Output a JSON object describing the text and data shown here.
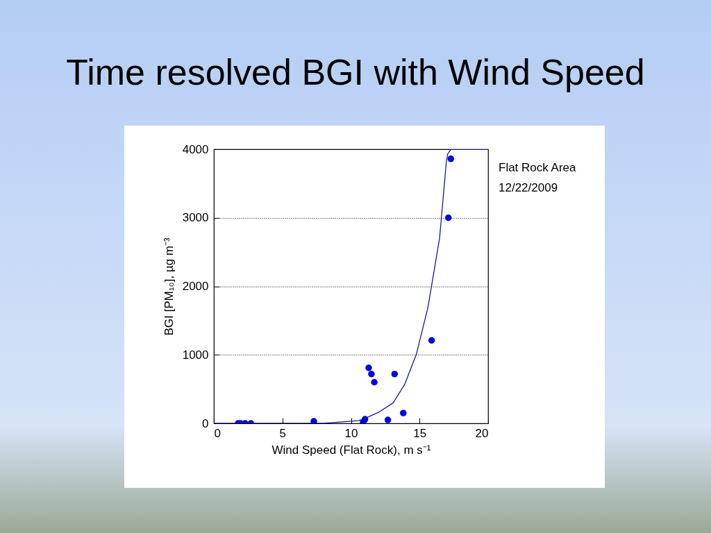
{
  "chart_data": {
    "type": "scatter",
    "title": "Time resolved BGI with Wind Speed",
    "xlabel": "Wind Speed (Flat Rock), m s⁻¹",
    "ylabel": "BGI [PM₁₀], µg m⁻³",
    "annotations": [
      "Flat Rock Area",
      "12/22/2009"
    ],
    "xlim": [
      0,
      20
    ],
    "xticks": [
      0,
      5,
      10,
      15,
      20
    ],
    "ylim": [
      0,
      4000
    ],
    "yticks": [
      0,
      1000,
      2000,
      3000,
      4000
    ],
    "grid": "y",
    "marker": "circle",
    "series": [
      {
        "color": "#0000e0",
        "x": [
          1.77,
          1.94,
          2.28,
          2.7,
          7.29,
          10.89,
          11.02,
          11.29,
          11.49,
          11.7,
          12.69,
          13.18,
          13.81,
          15.88,
          17.1,
          17.28
        ],
        "values": [
          0,
          0,
          0,
          0,
          30,
          20,
          60,
          810,
          720,
          600,
          50,
          720,
          150,
          1210,
          3000,
          3860
        ]
      },
      {
        "type": "line",
        "color": "#1a1aa0",
        "line_style": "solid",
        "marker": "none",
        "x": [
          0,
          8,
          10.55,
          11,
          12,
          13.08,
          13.92,
          14.77,
          15.61,
          16.46,
          16.96,
          17.05,
          17.3,
          20
        ],
        "values": [
          0,
          0,
          40,
          70,
          160,
          300,
          570,
          1010,
          1690,
          2700,
          3830,
          3930,
          4000,
          4000
        ]
      }
    ]
  }
}
